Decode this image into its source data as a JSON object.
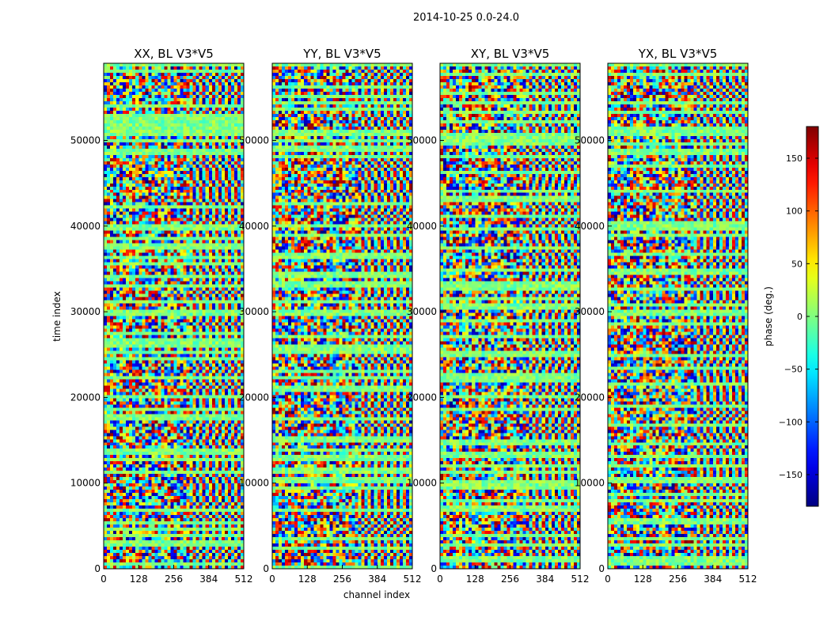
{
  "figure": {
    "suptitle": "2014-10-25 0.0-24.0",
    "xlabel": "channel index",
    "ylabel": "time index"
  },
  "colorbar": {
    "label": "phase (deg.)",
    "ticks": [
      -150,
      -100,
      -50,
      0,
      50,
      100,
      150
    ],
    "tick_labels": [
      "−150",
      "−100",
      "−50",
      "0",
      "50",
      "100",
      "150"
    ],
    "range": [
      -180,
      180
    ],
    "colormap": "jet",
    "colors": [
      "#00007f",
      "#0000ff",
      "#007fff",
      "#00ffff",
      "#7fff7f",
      "#ffff00",
      "#ff7f00",
      "#ff0000",
      "#7f0000"
    ]
  },
  "chart_data": {
    "type": "heatmap",
    "xlim": [
      0,
      512
    ],
    "ylim": [
      0,
      59000
    ],
    "xticks": [
      0,
      128,
      256,
      384,
      512
    ],
    "yticks": [
      0,
      10000,
      20000,
      30000,
      40000,
      50000
    ],
    "zlabel": "phase (deg.)",
    "zlim": [
      -180,
      180
    ],
    "panels": [
      {
        "title": "XX, BL V3*V5"
      },
      {
        "title": "YY, BL V3*V5"
      },
      {
        "title": "XY, BL V3*V5"
      },
      {
        "title": "YX, BL V3*V5"
      }
    ]
  }
}
